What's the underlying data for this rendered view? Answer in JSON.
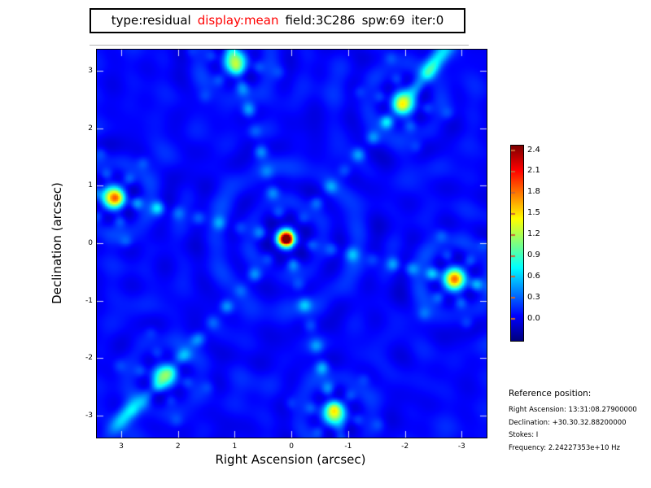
{
  "title": {
    "parts": [
      {
        "text": "type:residual",
        "color": "#000000"
      },
      {
        "text": "display:mean",
        "color": "#ff0000"
      },
      {
        "text": "field:3C286",
        "color": "#000000"
      },
      {
        "text": "spw:69",
        "color": "#000000"
      },
      {
        "text": "iter:0",
        "color": "#000000"
      }
    ]
  },
  "chart_data": {
    "type": "heatmap",
    "xlabel": "Right Ascension (arcsec)",
    "ylabel": "Declination (arcsec)",
    "x_ticks": [
      3,
      2,
      1,
      0,
      -1,
      -2,
      -3
    ],
    "y_ticks": [
      3,
      2,
      1,
      0,
      -1,
      -2,
      -3
    ],
    "x_range": [
      3.43,
      -3.44
    ],
    "y_range": [
      3.37,
      -3.38
    ],
    "colormap": "jet",
    "colorbar": {
      "tick_labels": [
        "2.4",
        "2.1",
        "1.8",
        "1.5",
        "1.2",
        "0.9",
        "0.6",
        "0.3",
        "0.0"
      ],
      "tick_values": [
        2.4,
        2.1,
        1.8,
        1.5,
        1.2,
        0.9,
        0.6,
        0.3,
        0.0
      ],
      "vmin": -0.31,
      "vmax": 2.47,
      "tick_color": "#cc6633"
    },
    "main_source": {
      "ra": 0.1,
      "dec": 0.08,
      "amp": 2.7,
      "sigma": 0.095
    },
    "secondary_sources": [
      {
        "ra": 1.0,
        "dec": 3.16,
        "amp": 0.85
      },
      {
        "ra": -1.98,
        "dec": 2.45,
        "amp": 0.95
      },
      {
        "ra": -2.87,
        "dec": -0.63,
        "amp": 1.15
      },
      {
        "ra": -0.76,
        "dec": -2.97,
        "amp": 0.9
      },
      {
        "ra": 2.25,
        "dec": -2.32,
        "amp": 0.8
      },
      {
        "ra": 3.14,
        "dec": 0.8,
        "amp": 1.1
      }
    ],
    "streaks": [
      {
        "ra": -2.55,
        "dec": 3.18,
        "amp": 0.72,
        "sig_par": 0.3,
        "sig_perp": 0.1,
        "angle_deg": 131.3
      },
      {
        "ra": 2.93,
        "dec": -3.0,
        "amp": 0.65,
        "sig_par": 0.28,
        "sig_perp": 0.1,
        "angle_deg": 131.3
      }
    ],
    "psf": {
      "arm_angles_deg": [
        73.7,
        131.3,
        13.4
      ],
      "chain_radii": [
        0.47,
        0.84,
        1.21,
        1.58,
        1.95,
        2.32,
        2.69,
        3.06,
        3.43,
        3.8
      ],
      "chain_amp": 0.33,
      "chain_sigma": 0.085,
      "secondary_sigma": 0.14,
      "ring_period": 0.62
    }
  },
  "reference": {
    "heading": "Reference position:",
    "lines": [
      "Right Ascension: 13:31:08.27900000",
      "Declination: +30.30.32.88200000",
      "Stokes: I",
      "Frequency: 2.24227353e+10 Hz"
    ]
  }
}
